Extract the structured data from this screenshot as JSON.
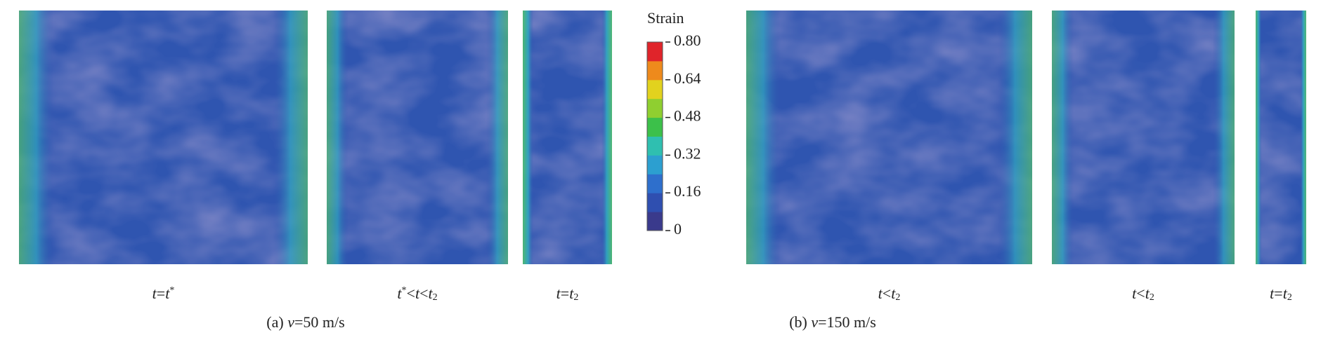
{
  "colorbar": {
    "title": "Strain",
    "range": [
      0,
      0.8
    ],
    "ticks": [
      0,
      0.16,
      0.32,
      0.48,
      0.64,
      {
        "value": 0.8,
        "label": "0.80"
      }
    ],
    "colors": [
      "#3a3a8c",
      "#2f4fb0",
      "#2e6fcc",
      "#2c9fd0",
      "#2fbfb0",
      "#3cc04a",
      "#8fcf30",
      "#e2d21e",
      "#ee8a1c",
      "#e0242a"
    ]
  },
  "panels": [
    {
      "caption": [
        {
          "i": "t"
        },
        {
          "t": "="
        },
        {
          "i": "t"
        },
        {
          "sup": "*"
        }
      ]
    },
    {
      "caption": [
        {
          "i": "t"
        },
        {
          "sup": "*"
        },
        {
          "t": "<"
        },
        {
          "i": "t"
        },
        {
          "t": "<"
        },
        {
          "i": "t"
        },
        {
          "sub": "2"
        }
      ]
    },
    {
      "caption": [
        {
          "i": "t"
        },
        {
          "t": "="
        },
        {
          "i": "t"
        },
        {
          "sub": "2"
        }
      ]
    },
    {
      "caption": [
        {
          "i": "t"
        },
        {
          "t": "<"
        },
        {
          "i": "t"
        },
        {
          "sub": "2"
        }
      ]
    },
    {
      "caption": [
        {
          "i": "t"
        },
        {
          "t": "<"
        },
        {
          "i": "t"
        },
        {
          "sub": "2"
        }
      ]
    },
    {
      "caption": [
        {
          "i": "t"
        },
        {
          "t": "="
        },
        {
          "i": "t"
        },
        {
          "sub": "2"
        }
      ]
    }
  ],
  "groups": [
    {
      "caption": [
        {
          "t": "(a) "
        },
        {
          "i": "v"
        },
        {
          "t": "=50 m/s"
        }
      ]
    },
    {
      "caption": [
        {
          "t": "(b) "
        },
        {
          "i": "v"
        },
        {
          "t": "=150 m/s"
        }
      ]
    }
  ]
}
